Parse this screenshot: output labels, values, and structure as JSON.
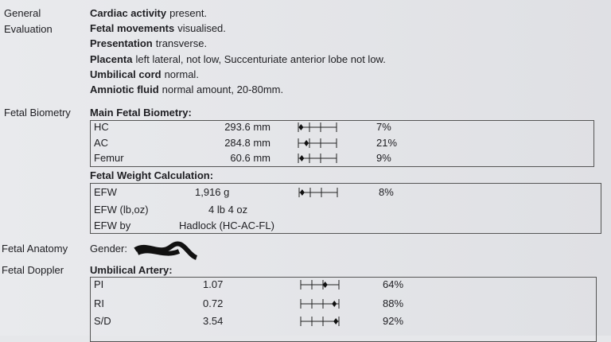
{
  "left_labels": {
    "general": "General",
    "evaluation": "Evaluation",
    "biometry": "Fetal Biometry",
    "anatomy": "Fetal Anatomy",
    "doppler": "Fetal Doppler"
  },
  "general_evaluation": [
    {
      "label": "Cardiac activity",
      "text": "present."
    },
    {
      "label": "Fetal movements",
      "text": "visualised."
    },
    {
      "label": "Presentation",
      "text": "transverse."
    },
    {
      "label": "Placenta",
      "text": "left lateral, not low, Succenturiate anterior lobe not low."
    },
    {
      "label": "Umbilical cord",
      "text": "normal."
    },
    {
      "label": "Amniotic fluid",
      "text": "normal amount, 20-80mm."
    }
  ],
  "main_biometry": {
    "title": "Main Fetal Biometry:",
    "rows": [
      {
        "name": "HC",
        "value": "293.6 mm",
        "percentile": "7%"
      },
      {
        "name": "AC",
        "value": "284.8 mm",
        "percentile": "21%"
      },
      {
        "name": "Femur",
        "value": "60.6 mm",
        "percentile": "9%"
      }
    ]
  },
  "weight": {
    "title": "Fetal Weight Calculation:",
    "rows": [
      {
        "name": "EFW",
        "value": "1,916 g",
        "percentile": "8%"
      },
      {
        "name": "EFW (lb,oz)",
        "value": "4 lb 4 oz"
      },
      {
        "name": "EFW by",
        "value": "Hadlock (HC-AC-FL)"
      }
    ]
  },
  "anatomy": {
    "label": "Gender:"
  },
  "doppler": {
    "title": "Umbilical Artery:",
    "rows": [
      {
        "name": "PI",
        "value": "1.07",
        "percentile": "64%"
      },
      {
        "name": "RI",
        "value": "0.72",
        "percentile": "88%"
      },
      {
        "name": "S/D",
        "value": "3.54",
        "percentile": "92%"
      }
    ]
  }
}
